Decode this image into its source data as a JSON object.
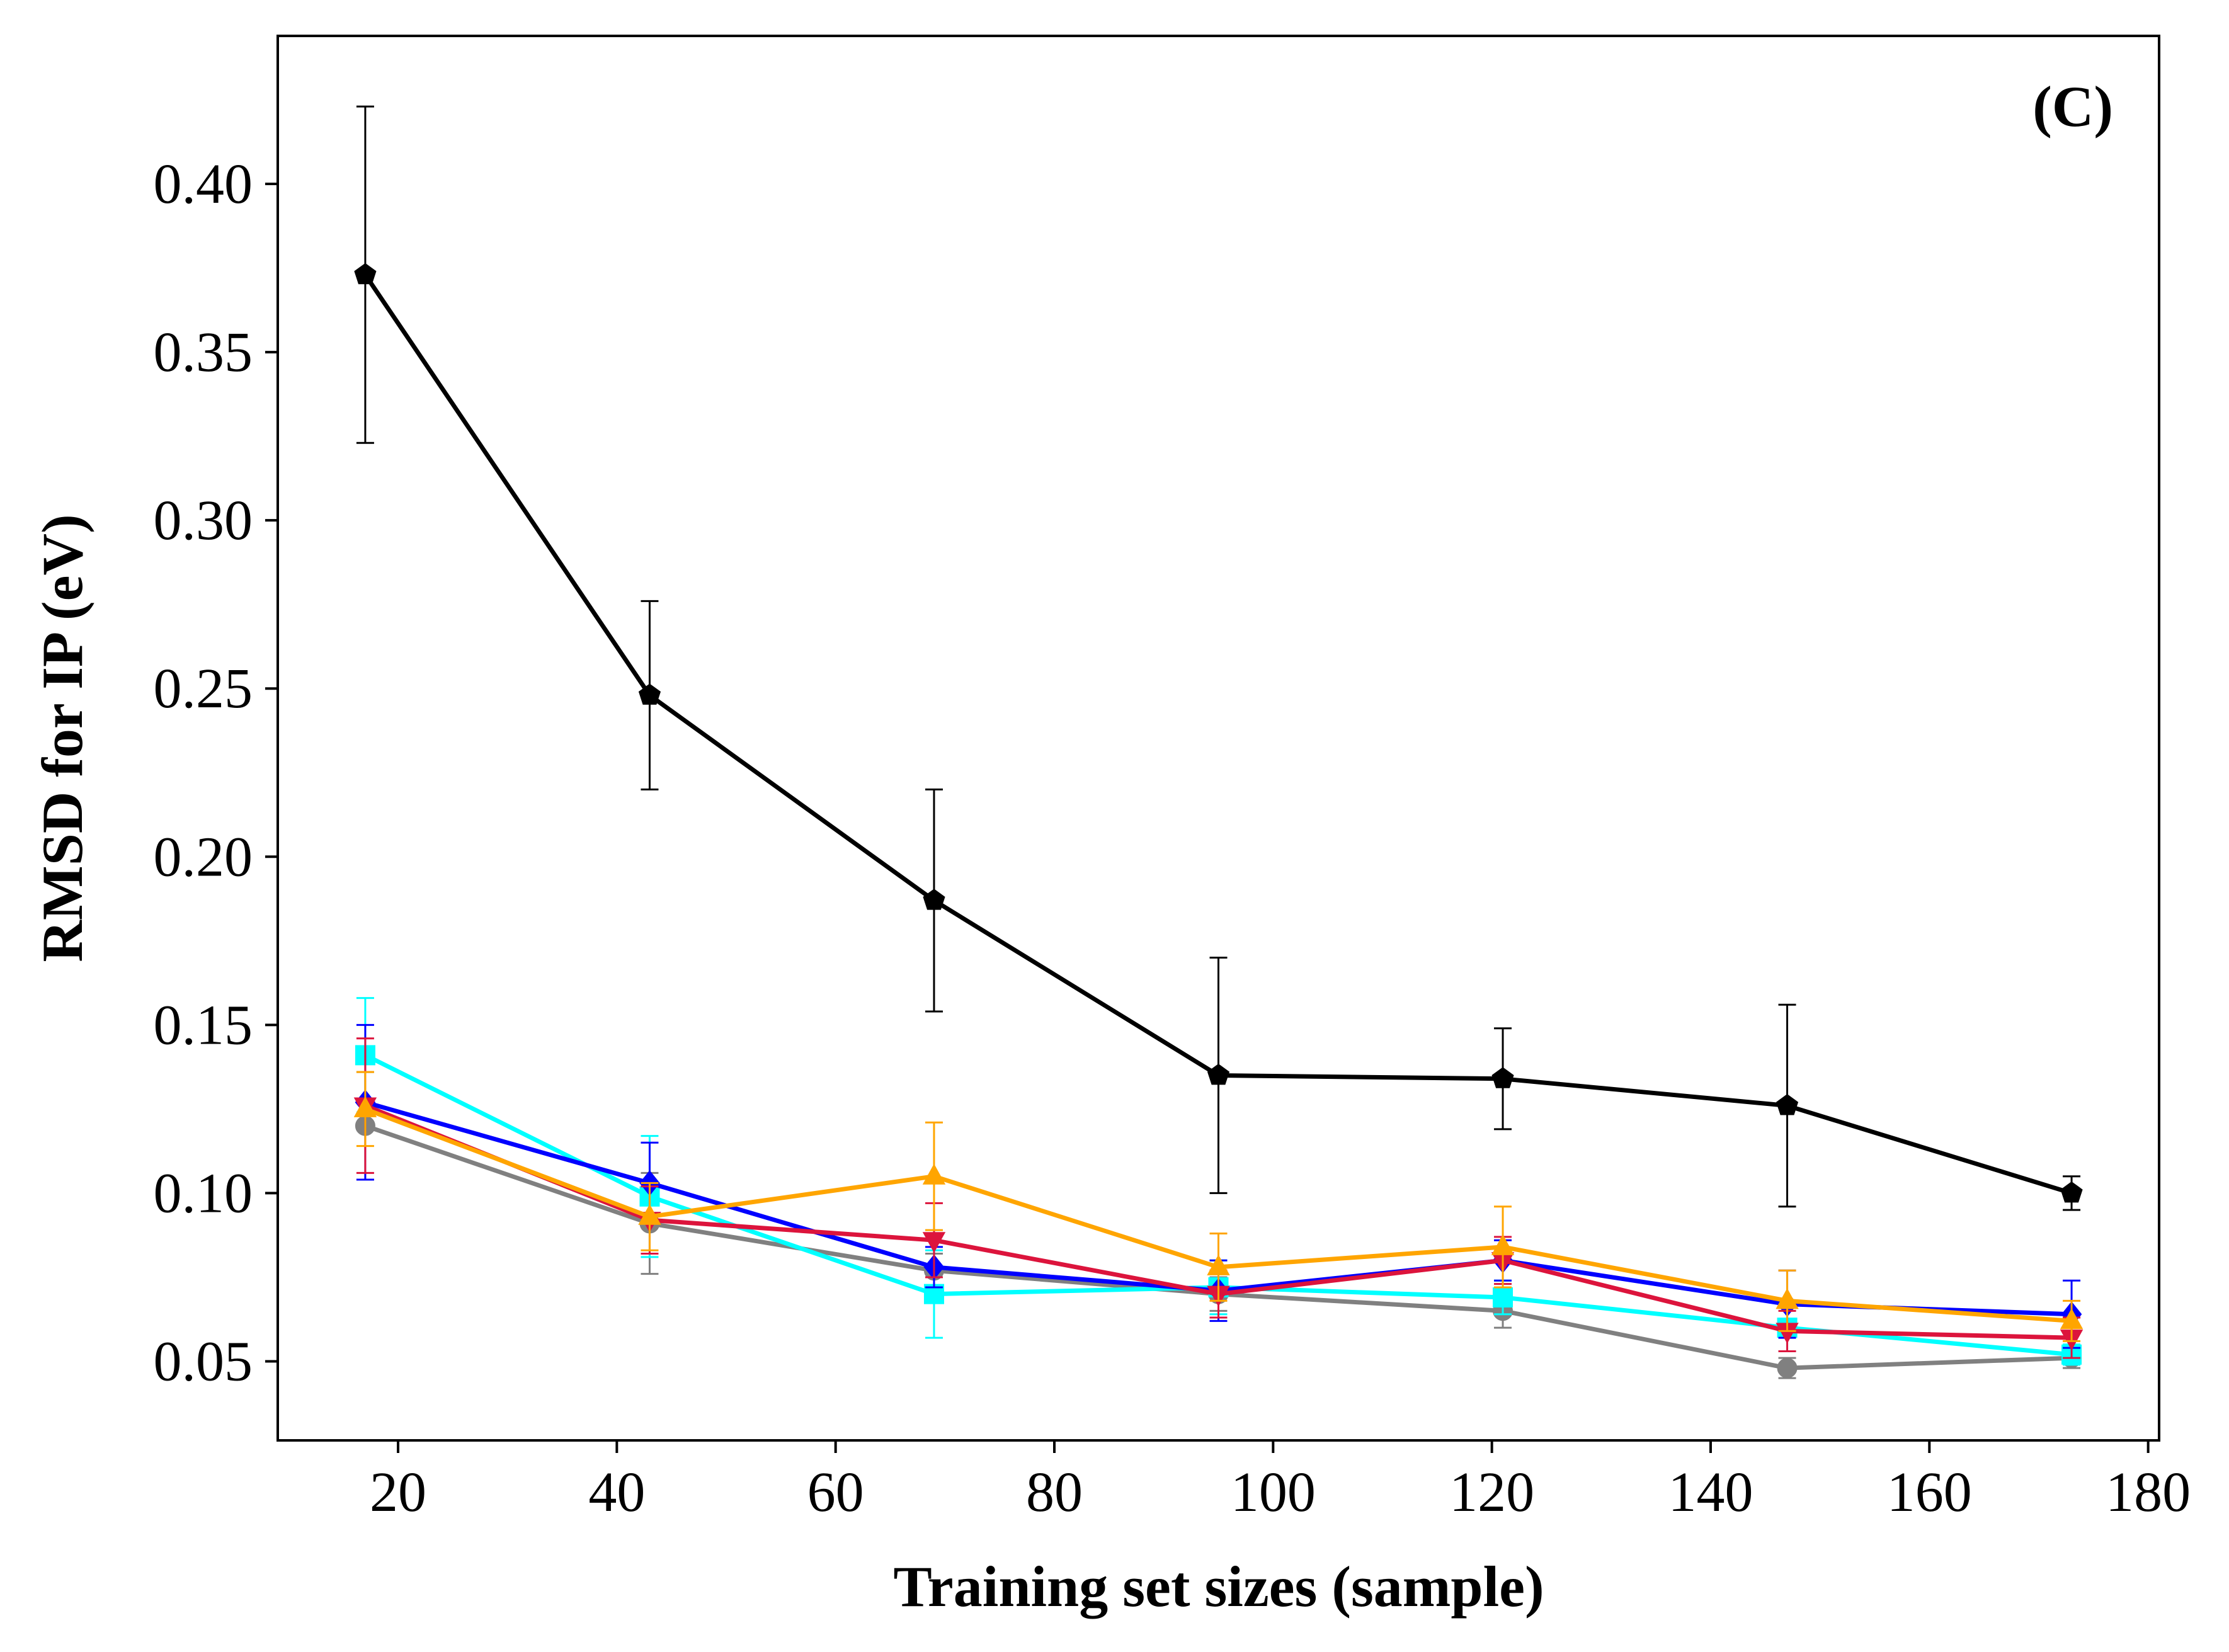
{
  "chart_data": {
    "type": "line",
    "panel_label": "(C)",
    "xlabel": "Training set sizes (sample)",
    "ylabel": "RMSD for IP (eV)",
    "xlim": [
      9,
      181
    ],
    "ylim": [
      0.0265,
      0.444
    ],
    "x_ticks": [
      20,
      40,
      60,
      80,
      100,
      120,
      140,
      160,
      180
    ],
    "x_tick_labels": [
      "20",
      "40",
      "60",
      "80",
      "100",
      "120",
      "140",
      "160",
      "180"
    ],
    "y_ticks": [
      0.05,
      0.1,
      0.15,
      0.2,
      0.25,
      0.3,
      0.35,
      0.4
    ],
    "y_tick_labels": [
      "0.05",
      "0.10",
      "0.15",
      "0.20",
      "0.25",
      "0.30",
      "0.35",
      "0.40"
    ],
    "grid": false,
    "legend": "none",
    "x": [
      17,
      43,
      69,
      95,
      121,
      147,
      173
    ],
    "series": [
      {
        "color": "#000000",
        "marker": "pentagon",
        "values": [
          0.373,
          0.248,
          0.187,
          0.135,
          0.134,
          0.126,
          0.1
        ],
        "errors": [
          0.05,
          0.028,
          0.033,
          0.035,
          0.015,
          0.03,
          0.005
        ]
      },
      {
        "color": "#ffa500",
        "marker": "triangle-up",
        "values": [
          0.125,
          0.093,
          0.105,
          0.078,
          0.084,
          0.068,
          0.062
        ],
        "errors": [
          0.011,
          0.01,
          0.016,
          0.01,
          0.012,
          0.009,
          0.006
        ]
      },
      {
        "color": "#dc143c",
        "marker": "triangle-down",
        "values": [
          0.126,
          0.092,
          0.086,
          0.07,
          0.08,
          0.059,
          0.057
        ],
        "errors": [
          0.02,
          0.01,
          0.011,
          0.007,
          0.007,
          0.006,
          0.006
        ]
      },
      {
        "color": "#0000ff",
        "marker": "diamond",
        "values": [
          0.127,
          0.103,
          0.078,
          0.071,
          0.08,
          0.067,
          0.064
        ],
        "errors": [
          0.023,
          0.012,
          0.006,
          0.009,
          0.006,
          0.01,
          0.01
        ]
      },
      {
        "color": "#00ffff",
        "marker": "square",
        "values": [
          0.141,
          0.099,
          0.07,
          0.072,
          0.069,
          0.06,
          0.052
        ],
        "errors": [
          0.017,
          0.018,
          0.013,
          0.008,
          0.005,
          0.007,
          0.003
        ]
      },
      {
        "color": "#808080",
        "marker": "circle",
        "values": [
          0.12,
          0.091,
          0.077,
          0.07,
          0.065,
          0.048,
          0.051
        ],
        "errors": [
          0.016,
          0.015,
          0.005,
          0.005,
          0.005,
          0.003,
          0.003
        ]
      }
    ]
  }
}
